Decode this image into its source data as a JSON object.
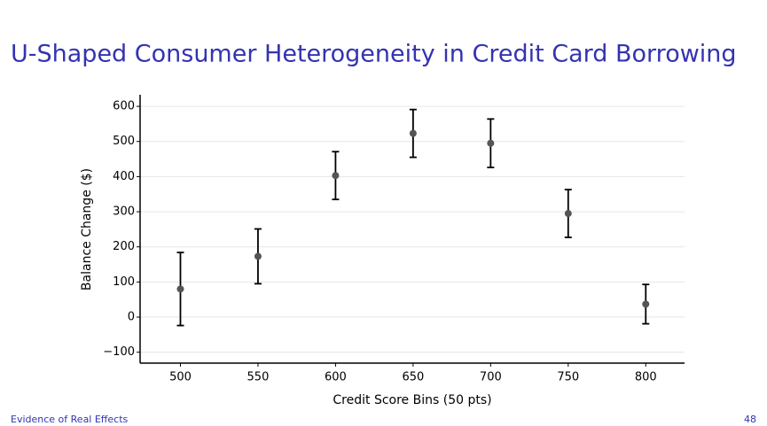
{
  "chart_data": {
    "type": "errorbar",
    "title": "U-Shaped Consumer Heterogeneity in Credit Card Borrowing",
    "xlabel": "Credit Score Bins (50 pts)",
    "ylabel": "Balance Change ($)",
    "x": [
      500,
      550,
      600,
      650,
      700,
      750,
      800
    ],
    "values": [
      80,
      173,
      403,
      523,
      495,
      295,
      37
    ],
    "errors": [
      104,
      78,
      68,
      68,
      69,
      68,
      56
    ],
    "color": "#555555",
    "error_color": "#000000",
    "xlim": [
      474,
      825
    ],
    "ylim": [
      -131,
      633
    ],
    "xticks": [
      500,
      550,
      600,
      650,
      700,
      750,
      800
    ],
    "yticks": [
      {
        "value": -100,
        "label": "−100"
      },
      0,
      100,
      200,
      300,
      400,
      500,
      600
    ],
    "grid": true
  },
  "footer": {
    "section": "Evidence of Real Effects",
    "page": "48"
  }
}
